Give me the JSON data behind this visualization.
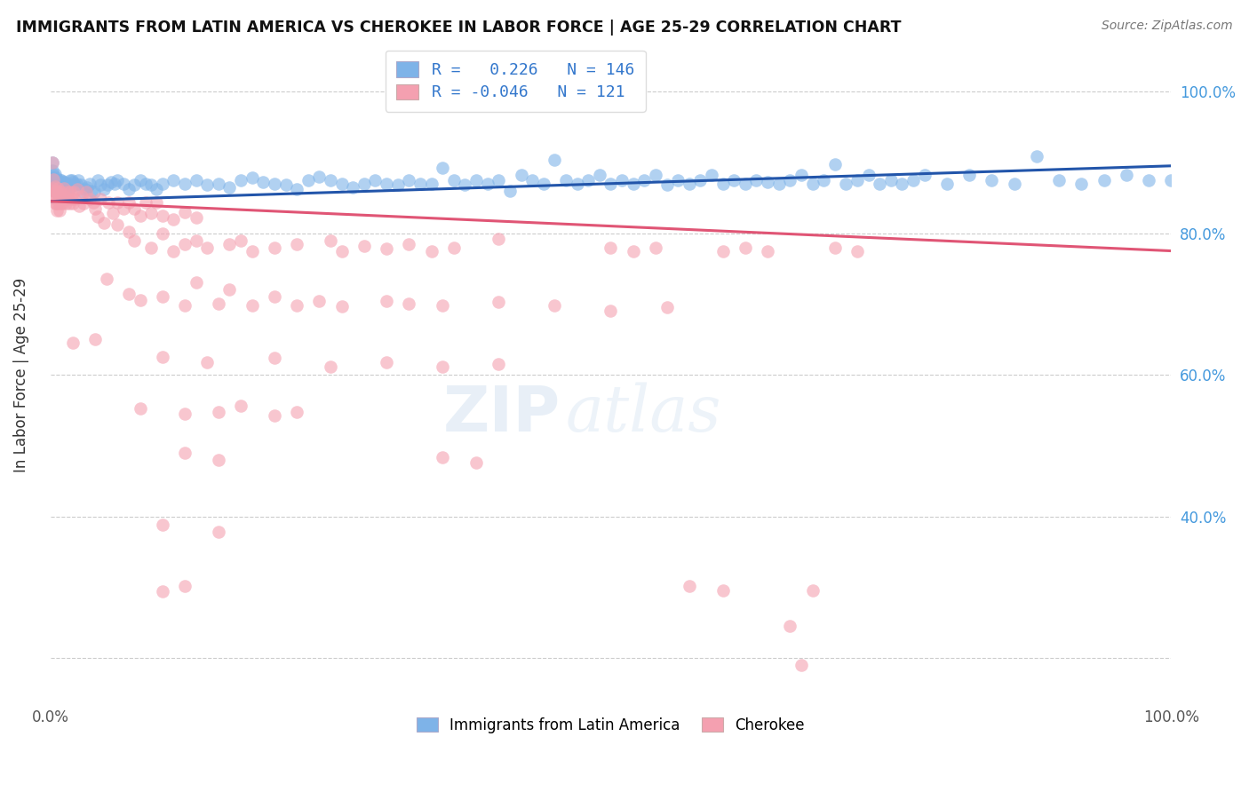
{
  "title": "IMMIGRANTS FROM LATIN AMERICA VS CHEROKEE IN LABOR FORCE | AGE 25-29 CORRELATION CHART",
  "source": "Source: ZipAtlas.com",
  "ylabel": "In Labor Force | Age 25-29",
  "xlim": [
    0.0,
    1.0
  ],
  "ylim": [
    0.14,
    1.06
  ],
  "yticks": [
    0.2,
    0.4,
    0.6,
    0.8,
    1.0
  ],
  "ytick_labels_right": [
    "",
    "40.0%",
    "60.0%",
    "80.0%",
    "100.0%"
  ],
  "xticks": [
    0.0,
    0.1,
    0.2,
    0.3,
    0.4,
    0.5,
    0.6,
    0.7,
    0.8,
    0.9,
    1.0
  ],
  "xtick_labels": [
    "0.0%",
    "",
    "",
    "",
    "",
    "",
    "",
    "",
    "",
    "",
    "100.0%"
  ],
  "color_blue": "#7EB3E8",
  "color_pink": "#F4A0B0",
  "color_blue_line": "#2255AA",
  "color_pink_line": "#E05575",
  "watermark_zip": "ZIP",
  "watermark_atlas": "atlas",
  "blue_r": 0.226,
  "blue_n": 146,
  "pink_r": -0.046,
  "pink_n": 121,
  "blue_line_x": [
    0.0,
    1.0
  ],
  "blue_line_y": [
    0.845,
    0.895
  ],
  "pink_line_x": [
    0.0,
    1.0
  ],
  "pink_line_y": [
    0.845,
    0.775
  ],
  "blue_dots": [
    [
      0.002,
      0.9
    ],
    [
      0.002,
      0.888
    ],
    [
      0.003,
      0.878
    ],
    [
      0.003,
      0.868
    ],
    [
      0.003,
      0.882
    ],
    [
      0.003,
      0.876
    ],
    [
      0.003,
      0.878
    ],
    [
      0.003,
      0.87
    ],
    [
      0.004,
      0.884
    ],
    [
      0.004,
      0.876
    ],
    [
      0.004,
      0.875
    ],
    [
      0.004,
      0.864
    ],
    [
      0.004,
      0.86
    ],
    [
      0.004,
      0.874
    ],
    [
      0.005,
      0.872
    ],
    [
      0.005,
      0.878
    ],
    [
      0.005,
      0.862
    ],
    [
      0.005,
      0.87
    ],
    [
      0.006,
      0.875
    ],
    [
      0.006,
      0.866
    ],
    [
      0.006,
      0.86
    ],
    [
      0.006,
      0.872
    ],
    [
      0.007,
      0.875
    ],
    [
      0.007,
      0.87
    ],
    [
      0.007,
      0.862
    ],
    [
      0.008,
      0.872
    ],
    [
      0.008,
      0.868
    ],
    [
      0.008,
      0.86
    ],
    [
      0.009,
      0.875
    ],
    [
      0.009,
      0.87
    ],
    [
      0.01,
      0.875
    ],
    [
      0.01,
      0.87
    ],
    [
      0.011,
      0.872
    ],
    [
      0.011,
      0.87
    ],
    [
      0.012,
      0.868
    ],
    [
      0.013,
      0.872
    ],
    [
      0.013,
      0.858
    ],
    [
      0.014,
      0.868
    ],
    [
      0.015,
      0.87
    ],
    [
      0.016,
      0.868
    ],
    [
      0.017,
      0.862
    ],
    [
      0.018,
      0.875
    ],
    [
      0.019,
      0.875
    ],
    [
      0.02,
      0.872
    ],
    [
      0.021,
      0.868
    ],
    [
      0.022,
      0.868
    ],
    [
      0.023,
      0.87
    ],
    [
      0.025,
      0.875
    ],
    [
      0.027,
      0.868
    ],
    [
      0.029,
      0.858
    ],
    [
      0.031,
      0.862
    ],
    [
      0.033,
      0.865
    ],
    [
      0.035,
      0.87
    ],
    [
      0.037,
      0.86
    ],
    [
      0.039,
      0.858
    ],
    [
      0.042,
      0.875
    ],
    [
      0.045,
      0.868
    ],
    [
      0.048,
      0.862
    ],
    [
      0.051,
      0.868
    ],
    [
      0.054,
      0.872
    ],
    [
      0.057,
      0.87
    ],
    [
      0.06,
      0.875
    ],
    [
      0.065,
      0.87
    ],
    [
      0.07,
      0.862
    ],
    [
      0.075,
      0.868
    ],
    [
      0.08,
      0.875
    ],
    [
      0.085,
      0.87
    ],
    [
      0.09,
      0.868
    ],
    [
      0.095,
      0.862
    ],
    [
      0.1,
      0.87
    ],
    [
      0.11,
      0.875
    ],
    [
      0.12,
      0.87
    ],
    [
      0.13,
      0.875
    ],
    [
      0.14,
      0.868
    ],
    [
      0.15,
      0.87
    ],
    [
      0.16,
      0.865
    ],
    [
      0.17,
      0.875
    ],
    [
      0.18,
      0.878
    ],
    [
      0.19,
      0.872
    ],
    [
      0.2,
      0.87
    ],
    [
      0.21,
      0.868
    ],
    [
      0.22,
      0.862
    ],
    [
      0.23,
      0.875
    ],
    [
      0.24,
      0.88
    ],
    [
      0.25,
      0.875
    ],
    [
      0.26,
      0.87
    ],
    [
      0.27,
      0.865
    ],
    [
      0.28,
      0.87
    ],
    [
      0.29,
      0.875
    ],
    [
      0.3,
      0.87
    ],
    [
      0.31,
      0.868
    ],
    [
      0.32,
      0.875
    ],
    [
      0.33,
      0.87
    ],
    [
      0.34,
      0.87
    ],
    [
      0.35,
      0.892
    ],
    [
      0.36,
      0.875
    ],
    [
      0.37,
      0.868
    ],
    [
      0.38,
      0.875
    ],
    [
      0.39,
      0.87
    ],
    [
      0.4,
      0.875
    ],
    [
      0.41,
      0.86
    ],
    [
      0.42,
      0.882
    ],
    [
      0.43,
      0.875
    ],
    [
      0.44,
      0.87
    ],
    [
      0.45,
      0.903
    ],
    [
      0.46,
      0.875
    ],
    [
      0.47,
      0.87
    ],
    [
      0.48,
      0.875
    ],
    [
      0.49,
      0.882
    ],
    [
      0.5,
      0.87
    ],
    [
      0.51,
      0.875
    ],
    [
      0.52,
      0.87
    ],
    [
      0.53,
      0.875
    ],
    [
      0.54,
      0.882
    ],
    [
      0.55,
      0.868
    ],
    [
      0.56,
      0.875
    ],
    [
      0.57,
      0.87
    ],
    [
      0.58,
      0.875
    ],
    [
      0.59,
      0.882
    ],
    [
      0.6,
      0.87
    ],
    [
      0.61,
      0.875
    ],
    [
      0.62,
      0.87
    ],
    [
      0.63,
      0.875
    ],
    [
      0.64,
      0.872
    ],
    [
      0.65,
      0.87
    ],
    [
      0.66,
      0.875
    ],
    [
      0.67,
      0.882
    ],
    [
      0.68,
      0.87
    ],
    [
      0.69,
      0.875
    ],
    [
      0.7,
      0.897
    ],
    [
      0.71,
      0.87
    ],
    [
      0.72,
      0.875
    ],
    [
      0.73,
      0.882
    ],
    [
      0.74,
      0.87
    ],
    [
      0.75,
      0.875
    ],
    [
      0.76,
      0.87
    ],
    [
      0.77,
      0.875
    ],
    [
      0.78,
      0.882
    ],
    [
      0.8,
      0.87
    ],
    [
      0.82,
      0.882
    ],
    [
      0.84,
      0.875
    ],
    [
      0.86,
      0.87
    ],
    [
      0.88,
      0.908
    ],
    [
      0.9,
      0.875
    ],
    [
      0.92,
      0.87
    ],
    [
      0.94,
      0.875
    ],
    [
      0.96,
      0.882
    ],
    [
      0.98,
      0.875
    ],
    [
      1.0,
      0.875
    ]
  ],
  "pink_dots": [
    [
      0.002,
      0.9
    ],
    [
      0.002,
      0.86
    ],
    [
      0.003,
      0.876
    ],
    [
      0.003,
      0.852
    ],
    [
      0.003,
      0.864
    ],
    [
      0.004,
      0.842
    ],
    [
      0.004,
      0.858
    ],
    [
      0.004,
      0.866
    ],
    [
      0.005,
      0.848
    ],
    [
      0.005,
      0.86
    ],
    [
      0.005,
      0.842
    ],
    [
      0.006,
      0.832
    ],
    [
      0.006,
      0.858
    ],
    [
      0.007,
      0.864
    ],
    [
      0.007,
      0.842
    ],
    [
      0.008,
      0.832
    ],
    [
      0.008,
      0.858
    ],
    [
      0.009,
      0.852
    ],
    [
      0.009,
      0.842
    ],
    [
      0.01,
      0.858
    ],
    [
      0.011,
      0.842
    ],
    [
      0.012,
      0.864
    ],
    [
      0.012,
      0.848
    ],
    [
      0.013,
      0.852
    ],
    [
      0.014,
      0.842
    ],
    [
      0.015,
      0.858
    ],
    [
      0.016,
      0.848
    ],
    [
      0.017,
      0.842
    ],
    [
      0.018,
      0.858
    ],
    [
      0.019,
      0.848
    ],
    [
      0.02,
      0.842
    ],
    [
      0.021,
      0.858
    ],
    [
      0.022,
      0.848
    ],
    [
      0.024,
      0.862
    ],
    [
      0.026,
      0.838
    ],
    [
      0.028,
      0.852
    ],
    [
      0.03,
      0.842
    ],
    [
      0.032,
      0.858
    ],
    [
      0.035,
      0.848
    ],
    [
      0.038,
      0.843
    ],
    [
      0.04,
      0.834
    ],
    [
      0.042,
      0.823
    ],
    [
      0.045,
      0.848
    ],
    [
      0.048,
      0.814
    ],
    [
      0.052,
      0.843
    ],
    [
      0.056,
      0.828
    ],
    [
      0.06,
      0.843
    ],
    [
      0.065,
      0.834
    ],
    [
      0.07,
      0.843
    ],
    [
      0.075,
      0.834
    ],
    [
      0.08,
      0.824
    ],
    [
      0.085,
      0.843
    ],
    [
      0.09,
      0.828
    ],
    [
      0.095,
      0.843
    ],
    [
      0.1,
      0.824
    ],
    [
      0.11,
      0.82
    ],
    [
      0.12,
      0.83
    ],
    [
      0.13,
      0.822
    ],
    [
      0.02,
      0.645
    ],
    [
      0.06,
      0.812
    ],
    [
      0.07,
      0.802
    ],
    [
      0.075,
      0.79
    ],
    [
      0.09,
      0.78
    ],
    [
      0.1,
      0.8
    ],
    [
      0.11,
      0.775
    ],
    [
      0.12,
      0.785
    ],
    [
      0.13,
      0.79
    ],
    [
      0.14,
      0.78
    ],
    [
      0.16,
      0.785
    ],
    [
      0.17,
      0.79
    ],
    [
      0.18,
      0.775
    ],
    [
      0.2,
      0.78
    ],
    [
      0.22,
      0.785
    ],
    [
      0.25,
      0.79
    ],
    [
      0.26,
      0.775
    ],
    [
      0.28,
      0.782
    ],
    [
      0.3,
      0.778
    ],
    [
      0.32,
      0.784
    ],
    [
      0.34,
      0.775
    ],
    [
      0.36,
      0.78
    ],
    [
      0.4,
      0.792
    ],
    [
      0.5,
      0.78
    ],
    [
      0.52,
      0.775
    ],
    [
      0.54,
      0.78
    ],
    [
      0.6,
      0.775
    ],
    [
      0.62,
      0.78
    ],
    [
      0.64,
      0.775
    ],
    [
      0.7,
      0.78
    ],
    [
      0.72,
      0.775
    ],
    [
      0.05,
      0.736
    ],
    [
      0.07,
      0.714
    ],
    [
      0.08,
      0.705
    ],
    [
      0.1,
      0.71
    ],
    [
      0.12,
      0.698
    ],
    [
      0.13,
      0.73
    ],
    [
      0.15,
      0.7
    ],
    [
      0.16,
      0.72
    ],
    [
      0.18,
      0.698
    ],
    [
      0.2,
      0.71
    ],
    [
      0.22,
      0.698
    ],
    [
      0.24,
      0.704
    ],
    [
      0.26,
      0.697
    ],
    [
      0.3,
      0.704
    ],
    [
      0.32,
      0.7
    ],
    [
      0.35,
      0.698
    ],
    [
      0.4,
      0.703
    ],
    [
      0.45,
      0.698
    ],
    [
      0.5,
      0.69
    ],
    [
      0.55,
      0.695
    ],
    [
      0.04,
      0.65
    ],
    [
      0.1,
      0.625
    ],
    [
      0.14,
      0.618
    ],
    [
      0.2,
      0.624
    ],
    [
      0.25,
      0.612
    ],
    [
      0.3,
      0.618
    ],
    [
      0.35,
      0.611
    ],
    [
      0.4,
      0.615
    ],
    [
      0.08,
      0.553
    ],
    [
      0.12,
      0.545
    ],
    [
      0.15,
      0.548
    ],
    [
      0.17,
      0.556
    ],
    [
      0.2,
      0.542
    ],
    [
      0.22,
      0.548
    ],
    [
      0.12,
      0.49
    ],
    [
      0.15,
      0.48
    ],
    [
      0.35,
      0.484
    ],
    [
      0.38,
      0.476
    ],
    [
      0.1,
      0.388
    ],
    [
      0.15,
      0.378
    ],
    [
      0.1,
      0.295
    ],
    [
      0.12,
      0.302
    ],
    [
      0.57,
      0.302
    ],
    [
      0.6,
      0.296
    ],
    [
      0.68,
      0.296
    ],
    [
      0.66,
      0.246
    ],
    [
      0.67,
      0.19
    ]
  ]
}
